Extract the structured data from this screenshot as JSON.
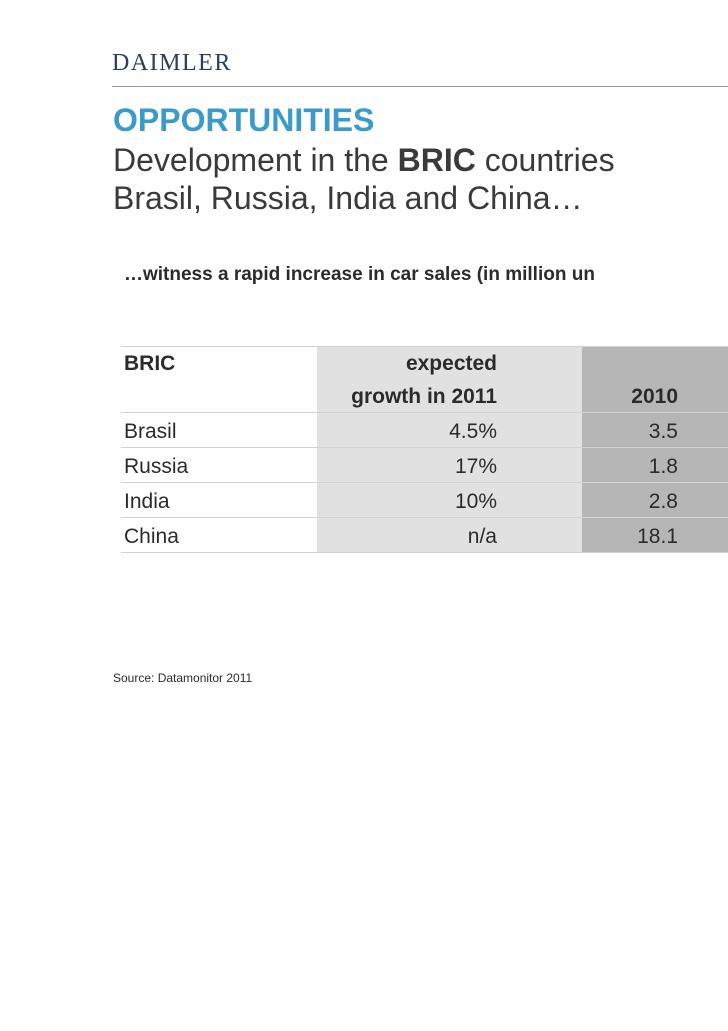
{
  "header": {
    "logo_text": "DAIMLER"
  },
  "title": {
    "headline": "OPPORTUNITIES",
    "line1_prefix": "Development in the ",
    "line1_bold": "BRIC",
    "line1_suffix": " countries",
    "line2": "Brasil, Russia, India and China…"
  },
  "intro": "…witness a rapid increase in car sales (in million un",
  "table": {
    "columns": {
      "region": "BRIC",
      "growth_line1": "expected",
      "growth_line2": "growth in 2011",
      "year": "2010"
    },
    "rows": [
      {
        "country": "Brasil",
        "growth": "4.5%",
        "sales_2010": "3.5"
      },
      {
        "country": "Russia",
        "growth": "17%",
        "sales_2010": "1.8"
      },
      {
        "country": "India",
        "growth": "10%",
        "sales_2010": "2.8"
      },
      {
        "country": "China",
        "growth": "n/a",
        "sales_2010": "18.1"
      }
    ]
  },
  "source": "Source: Datamonitor 2011",
  "colors": {
    "headline": "#3a9ac9",
    "logo": "#2a3f5f",
    "growth_band": "#e1e1e1",
    "year_band": "#b6b6b6"
  }
}
